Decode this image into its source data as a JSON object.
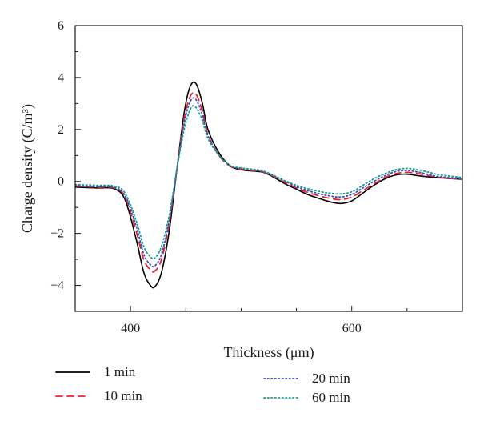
{
  "chart_data": {
    "type": "line",
    "xlabel": "Thickness (μm)",
    "ylabel": "Charge density (C/m³)",
    "xlim": [
      350,
      700
    ],
    "ylim": [
      -5,
      6
    ],
    "xticks": [
      400,
      600
    ],
    "yticks": [
      -4,
      -2,
      0,
      2,
      4,
      6
    ],
    "grid": false,
    "legend_position": "bottom",
    "series": [
      {
        "name": "1 min",
        "color": "#000000",
        "dash": "solid",
        "x": [
          350,
          370,
          385,
          395,
          405,
          412,
          418,
          422,
          428,
          435,
          442,
          448,
          452,
          456,
          460,
          465,
          470,
          480,
          490,
          500,
          510,
          520,
          530,
          540,
          550,
          560,
          570,
          580,
          590,
          600,
          610,
          620,
          630,
          640,
          650,
          660,
          670,
          680,
          700
        ],
        "y": [
          -0.22,
          -0.25,
          -0.28,
          -0.7,
          -2.2,
          -3.5,
          -4.0,
          -4.05,
          -3.5,
          -1.9,
          0.5,
          2.5,
          3.4,
          3.8,
          3.7,
          3.0,
          2.0,
          1.1,
          0.6,
          0.45,
          0.4,
          0.35,
          0.15,
          -0.1,
          -0.3,
          -0.5,
          -0.65,
          -0.78,
          -0.85,
          -0.75,
          -0.45,
          -0.15,
          0.1,
          0.25,
          0.28,
          0.22,
          0.17,
          0.14,
          0.08
        ]
      },
      {
        "name": "10 min",
        "color": "#e0262b",
        "dash": "8,6",
        "x": [
          350,
          370,
          385,
          395,
          405,
          412,
          418,
          422,
          428,
          435,
          442,
          448,
          452,
          456,
          460,
          465,
          470,
          480,
          490,
          500,
          510,
          520,
          530,
          540,
          550,
          560,
          570,
          580,
          590,
          600,
          610,
          620,
          630,
          640,
          650,
          660,
          670,
          680,
          700
        ],
        "y": [
          -0.18,
          -0.22,
          -0.25,
          -0.6,
          -1.9,
          -3.0,
          -3.4,
          -3.45,
          -3.0,
          -1.6,
          0.5,
          2.3,
          3.05,
          3.4,
          3.3,
          2.7,
          1.8,
          1.0,
          0.58,
          0.47,
          0.42,
          0.36,
          0.18,
          -0.05,
          -0.25,
          -0.42,
          -0.55,
          -0.65,
          -0.7,
          -0.6,
          -0.35,
          -0.1,
          0.15,
          0.3,
          0.35,
          0.3,
          0.22,
          0.15,
          0.08
        ]
      },
      {
        "name": "20 min",
        "color": "#3b4fc4",
        "dash": "1.5,3",
        "x": [
          350,
          370,
          385,
          395,
          405,
          412,
          418,
          422,
          428,
          435,
          442,
          448,
          452,
          456,
          460,
          465,
          470,
          480,
          490,
          500,
          510,
          520,
          530,
          540,
          550,
          560,
          570,
          580,
          590,
          600,
          610,
          620,
          630,
          640,
          650,
          660,
          670,
          680,
          700
        ],
        "y": [
          -0.16,
          -0.2,
          -0.23,
          -0.55,
          -1.7,
          -2.8,
          -3.2,
          -3.25,
          -2.8,
          -1.5,
          0.5,
          2.1,
          2.85,
          3.2,
          3.1,
          2.55,
          1.75,
          1.0,
          0.6,
          0.5,
          0.45,
          0.38,
          0.2,
          0.0,
          -0.2,
          -0.35,
          -0.47,
          -0.56,
          -0.6,
          -0.5,
          -0.25,
          0.0,
          0.22,
          0.38,
          0.42,
          0.36,
          0.26,
          0.18,
          0.1
        ]
      },
      {
        "name": "60 min",
        "color": "#1f9c8a",
        "dash": "1.5,3",
        "x": [
          350,
          370,
          385,
          395,
          405,
          412,
          418,
          422,
          428,
          435,
          442,
          448,
          452,
          456,
          460,
          465,
          470,
          480,
          490,
          500,
          510,
          520,
          530,
          540,
          550,
          560,
          570,
          580,
          590,
          600,
          610,
          620,
          630,
          640,
          650,
          660,
          670,
          680,
          700
        ],
        "y": [
          -0.12,
          -0.15,
          -0.18,
          -0.45,
          -1.5,
          -2.5,
          -2.9,
          -2.95,
          -2.5,
          -1.3,
          0.5,
          1.9,
          2.55,
          2.9,
          2.8,
          2.35,
          1.65,
          1.0,
          0.62,
          0.52,
          0.47,
          0.4,
          0.22,
          0.02,
          -0.15,
          -0.28,
          -0.38,
          -0.45,
          -0.48,
          -0.4,
          -0.15,
          0.1,
          0.3,
          0.45,
          0.5,
          0.45,
          0.35,
          0.25,
          0.15
        ]
      }
    ]
  }
}
